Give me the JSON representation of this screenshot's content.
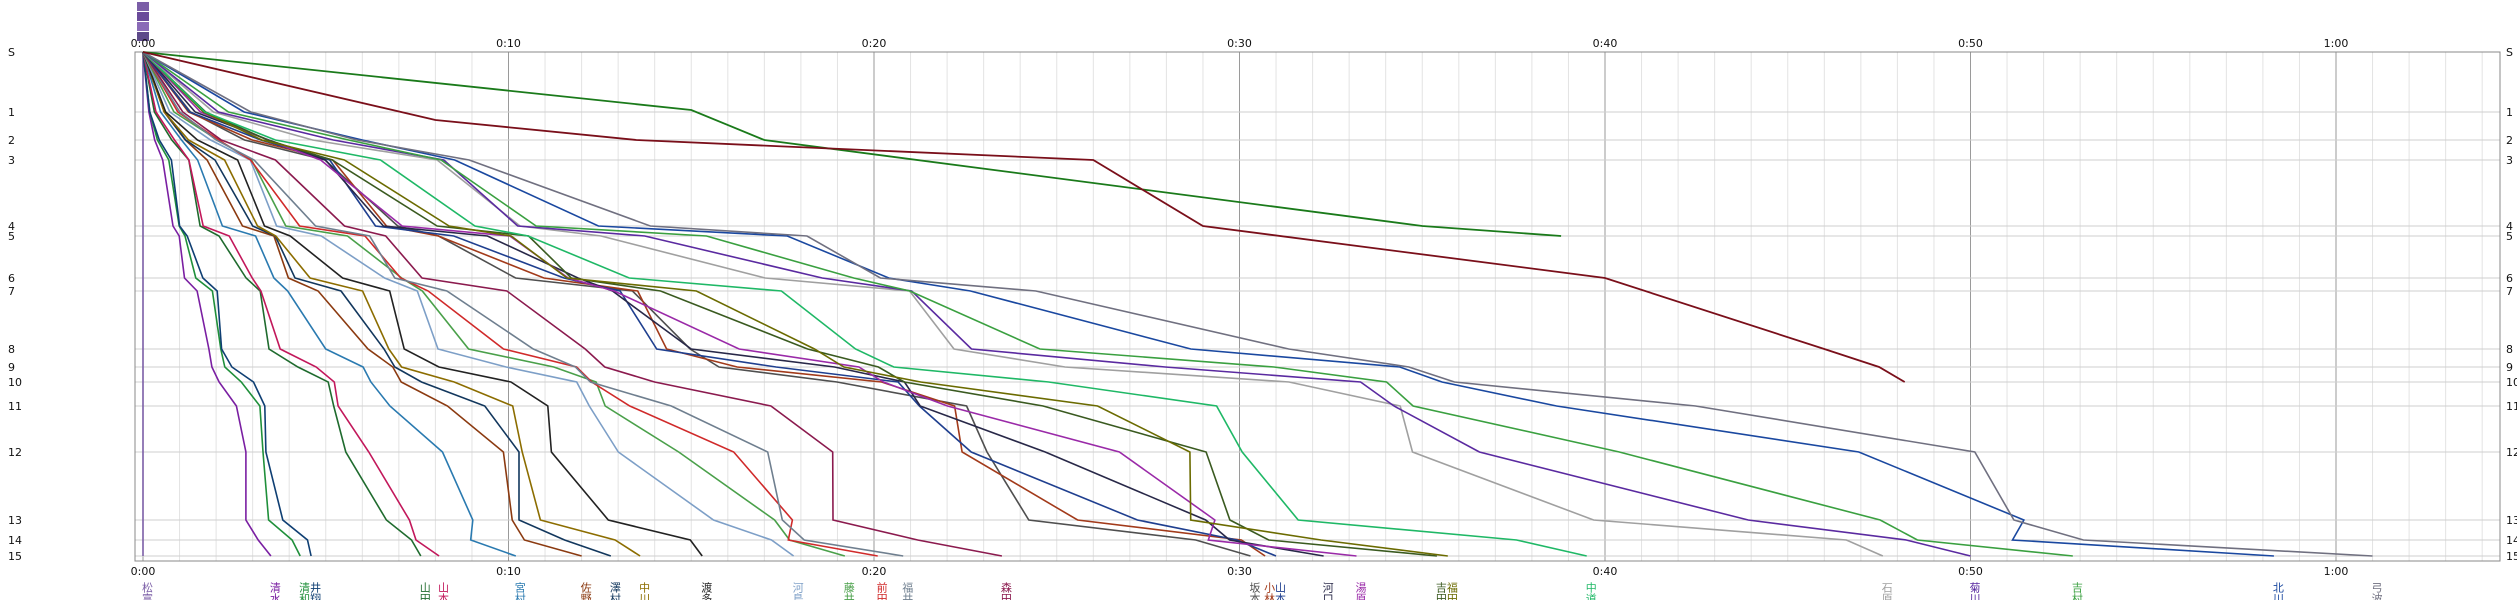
{
  "chart_data": {
    "type": "line",
    "x_ticks": [
      "0:00",
      "0:10",
      "0:20",
      "0:30",
      "0:40",
      "0:50",
      "1:00"
    ],
    "y_ticks": [
      "S",
      "1",
      "2",
      "3",
      "4",
      "5",
      "6",
      "7",
      "8",
      "9",
      "10",
      "11",
      "12",
      "13",
      "14",
      "15"
    ],
    "xlim_minutes": [
      0,
      65.5
    ],
    "grid": true,
    "runners": [
      {
        "name": "松富",
        "finish": 0,
        "color": "#7b5ea7"
      },
      {
        "name": "清水",
        "finish": 3.5,
        "color": "#7a1fa2"
      },
      {
        "name": "清和",
        "finish": 4.3,
        "color": "#1f8f3a"
      },
      {
        "name": "井翔",
        "finish": 4.6,
        "color": "#0f3f73"
      },
      {
        "name": "山田",
        "finish": 7.6,
        "color": "#1f6b2e"
      },
      {
        "name": "山本",
        "finish": 8.1,
        "color": "#c2185b"
      },
      {
        "name": "宮村",
        "finish": 10.2,
        "color": "#2a7ab0"
      },
      {
        "name": "佐野",
        "finish": 12.0,
        "color": "#8b3a10"
      },
      {
        "name": "澤村",
        "finish": 12.8,
        "color": "#12375d"
      },
      {
        "name": "中川",
        "finish": 13.6,
        "color": "#8c6d00"
      },
      {
        "name": "渡多",
        "finish": 15.3,
        "color": "#222222"
      },
      {
        "name": "河島",
        "finish": 17.8,
        "color": "#7d9fc7"
      },
      {
        "name": "藤井",
        "finish": 19.2,
        "color": "#4aa04a"
      },
      {
        "name": "前田",
        "finish": 20.1,
        "color": "#d02a2a"
      },
      {
        "name": "福井",
        "finish": 20.8,
        "color": "#6f7f8f"
      },
      {
        "name": "森田",
        "finish": 23.5,
        "color": "#8b1a4e"
      },
      {
        "name": "坂本",
        "finish": 30.3,
        "color": "#4f4f4f"
      },
      {
        "name": "小林",
        "finish": 30.7,
        "color": "#a23a1a"
      },
      {
        "name": "山本",
        "finish": 31.0,
        "color": "#1f3f8f"
      },
      {
        "name": "河口",
        "finish": 32.3,
        "color": "#282848"
      },
      {
        "name": "湯原",
        "finish": 33.2,
        "color": "#9a2aa8"
      },
      {
        "name": "吉田",
        "finish": 35.4,
        "color": "#3a5a20"
      },
      {
        "name": "福田",
        "finish": 35.7,
        "color": "#6b6b00"
      },
      {
        "name": "中道",
        "finish": 39.5,
        "color": "#1fb866"
      },
      {
        "name": "石原",
        "finish": 47.6,
        "color": "#a0a0a0"
      },
      {
        "name": "菊川",
        "finish": 50.0,
        "color": "#5a2aa0"
      },
      {
        "name": "吉村",
        "finish": 52.8,
        "color": "#3aa040"
      },
      {
        "name": "北川",
        "finish": 58.3,
        "color": "#1a48a0"
      },
      {
        "name": "弓波",
        "finish": 61.0,
        "color": "#707080"
      }
    ],
    "dnf_colors": [
      "#1a7a1a",
      "#7a0f1a"
    ]
  }
}
